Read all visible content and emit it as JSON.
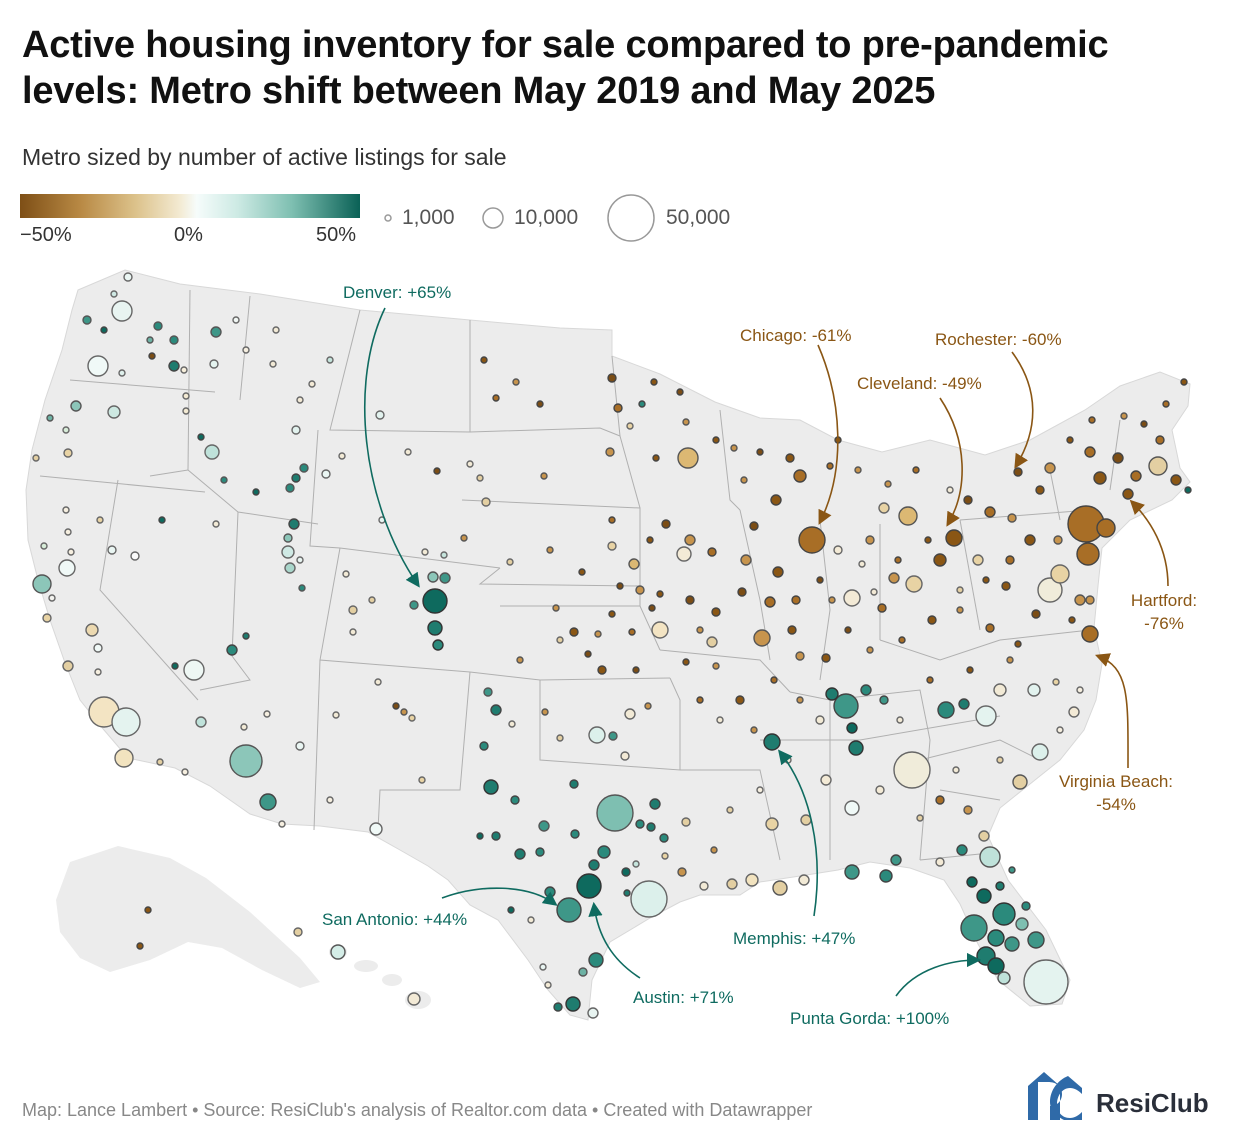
{
  "header": {
    "title": "Active housing inventory for sale compared to pre-pandemic levels: Metro shift between May 2019 and May 2025",
    "subtitle": "Metro sized by number of active listings for sale"
  },
  "legend": {
    "color_labels": [
      "−50%",
      "0%",
      "50%"
    ],
    "size_labels": [
      "1,000",
      "10,000",
      "50,000"
    ],
    "colors": {
      "low": "#7e4f16",
      "mid": "#f6fcfb",
      "high": "#0a6156"
    }
  },
  "annotations": [
    {
      "id": "denver",
      "label": "Denver: +65%",
      "change": 65
    },
    {
      "id": "chicago",
      "label": "Chicago: -61%",
      "change": -61
    },
    {
      "id": "rochester",
      "label": "Rochester: -60%",
      "change": -60
    },
    {
      "id": "cleveland",
      "label": "Cleveland: -49%",
      "change": -49
    },
    {
      "id": "hartford",
      "label": "Hartford:",
      "label2": "-76%",
      "change": -76
    },
    {
      "id": "virginia_beach",
      "label": "Virginia Beach:",
      "label2": "-54%",
      "change": -54
    },
    {
      "id": "san_antonio",
      "label": "San Antonio: +44%",
      "change": 44
    },
    {
      "id": "austin",
      "label": "Austin: +71%",
      "change": 71
    },
    {
      "id": "memphis",
      "label": "Memphis: +47%",
      "change": 47
    },
    {
      "id": "punta_gorda",
      "label": "Punta Gorda: +100%",
      "change": 100
    }
  ],
  "footer": {
    "credit": "Map: Lance Lambert • Source: ResiClub's analysis of Realtor.com data • Created with Datawrapper",
    "brand": "ResiClub"
  }
}
